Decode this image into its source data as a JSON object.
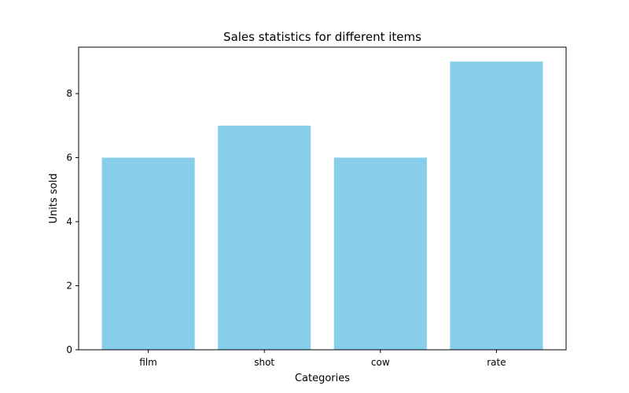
{
  "chart_data": {
    "type": "bar",
    "title": "Sales statistics for different items",
    "xlabel": "Categories",
    "ylabel": "Units sold",
    "categories": [
      "film",
      "shot",
      "cow",
      "rate"
    ],
    "values": [
      6,
      7,
      6,
      9
    ],
    "ylim": [
      0,
      9.45
    ],
    "yticks": [
      0,
      2,
      4,
      6,
      8
    ],
    "bar_color": "#87ceeb",
    "grid": false
  }
}
